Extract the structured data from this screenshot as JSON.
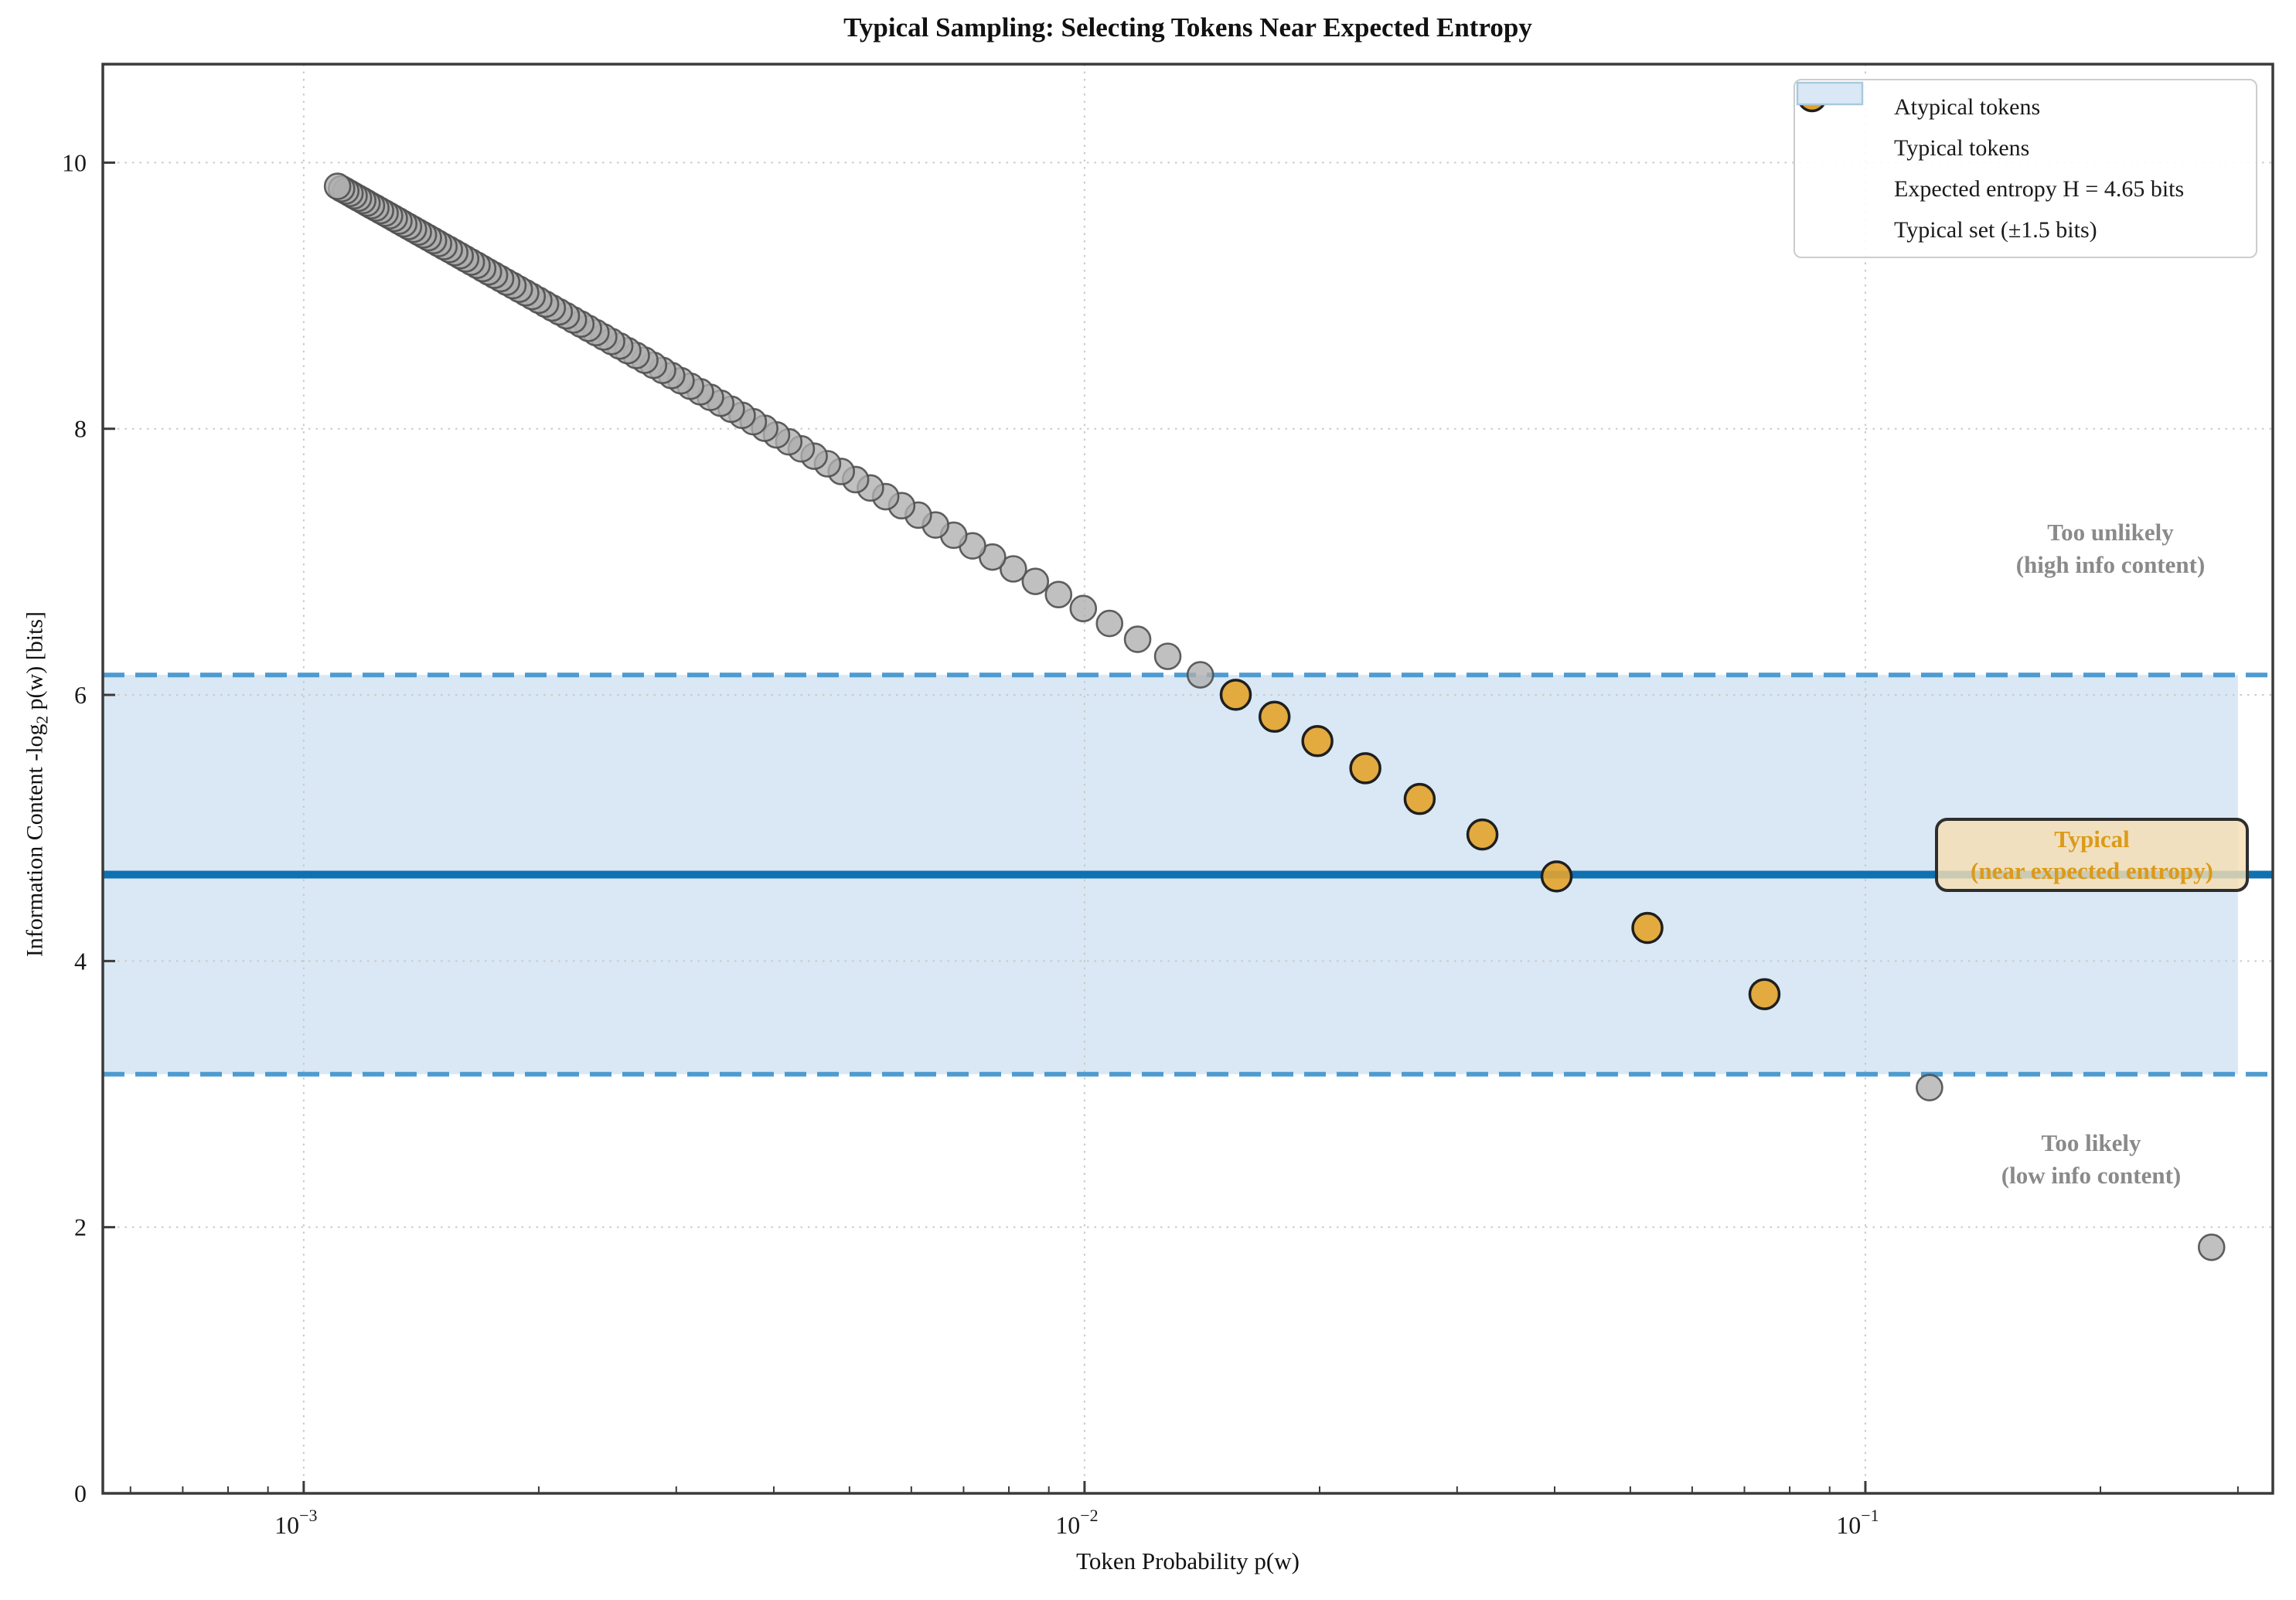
{
  "chart_data": {
    "type": "scatter",
    "title": "Typical Sampling: Selecting Tokens Near Expected Entropy",
    "xlabel": "Token Probability p(w)",
    "ylabel": "Information Content -log2 p(w) [bits]",
    "ylabel_parts": {
      "prefix": "Information Content -log",
      "sub": "2",
      "suffix": " p(w) [bits]"
    },
    "xscale": "log",
    "xlim": [
      0.000553,
      0.3325
    ],
    "ylim": [
      0,
      10.74
    ],
    "yticks": [
      0,
      2,
      4,
      6,
      8,
      10
    ],
    "xticks": [
      {
        "value": 0.001,
        "base": "10",
        "exp": "−3"
      },
      {
        "value": 0.01,
        "base": "10",
        "exp": "−2"
      },
      {
        "value": 0.1,
        "base": "10",
        "exp": "−1"
      }
    ],
    "grid": "dotted, major ticks only",
    "legend_position": "upper right",
    "expected_entropy_bits": 4.65,
    "typical_halfwidth_bits": 1.5,
    "typical_band": {
      "lo": 3.15,
      "hi": 6.15,
      "fill_x_end": 0.3
    },
    "colors": {
      "band_fill": "#d9e8f4",
      "band_edge": "#4e9bd0",
      "entropy_line": "#0f70b2",
      "atypical_fill": "#aeaeae",
      "atypical_edge": "#4f4f4f",
      "typical_fill": "#e2a32b",
      "typical_edge": "#1f1f1f",
      "grid": "#c9c9c9",
      "spine": "#3a3a3a",
      "tick_label": "#1a1a1a",
      "annotation_gray": "#8a8a8a",
      "annotation_orange": "#dc9a18",
      "typical_box_fill": "rgba(245,222,179,0.82)",
      "typical_box_edge": "#2e2e2e"
    },
    "series": [
      {
        "name": "Atypical tokens",
        "marker": "circle",
        "points": [
          [
            0.277548,
            1.849
          ],
          [
            0.12081,
            3.049
          ],
          [
            0.014071,
            6.151
          ],
          [
            0.012781,
            6.29
          ],
          [
            0.011694,
            6.418
          ],
          [
            0.010765,
            6.537
          ],
          [
            0.009963,
            6.649
          ],
          [
            0.009262,
            6.754
          ],
          [
            0.00865,
            6.853
          ],
          [
            0.008106,
            6.947
          ],
          [
            0.007623,
            7.036
          ],
          [
            0.007187,
            7.12
          ],
          [
            0.006799,
            7.2
          ],
          [
            0.006444,
            7.277
          ],
          [
            0.006125,
            7.351
          ],
          [
            0.005832,
            7.422
          ],
          [
            0.005563,
            7.49
          ],
          [
            0.005318,
            7.555
          ],
          [
            0.00509,
            7.618
          ],
          [
            0.00488,
            7.679
          ],
          [
            0.004686,
            7.737
          ],
          [
            0.004505,
            7.794
          ],
          [
            0.004337,
            7.849
          ],
          [
            0.00418,
            7.902
          ],
          [
            0.004032,
            7.954
          ],
          [
            0.003894,
            8.004
          ],
          [
            0.003765,
            8.053
          ],
          [
            0.003643,
            8.101
          ],
          [
            0.003528,
            8.147
          ],
          [
            0.00342,
            8.192
          ],
          [
            0.003318,
            8.236
          ],
          [
            0.003221,
            8.278
          ],
          [
            0.003128,
            8.32
          ],
          [
            0.003042,
            8.361
          ],
          [
            0.002959,
            8.4
          ],
          [
            0.002881,
            8.439
          ],
          [
            0.002805,
            8.477
          ],
          [
            0.002734,
            8.515
          ],
          [
            0.002666,
            8.551
          ],
          [
            0.0026,
            8.587
          ],
          [
            0.002539,
            8.622
          ],
          [
            0.002479,
            8.656
          ],
          [
            0.002422,
            8.69
          ],
          [
            0.002367,
            8.723
          ],
          [
            0.002315,
            8.755
          ],
          [
            0.002264,
            8.787
          ],
          [
            0.002215,
            8.818
          ],
          [
            0.002169,
            8.849
          ],
          [
            0.002124,
            8.879
          ],
          [
            0.002081,
            8.908
          ],
          [
            0.00204,
            8.937
          ],
          [
            0.002,
            8.966
          ],
          [
            0.001961,
            8.994
          ],
          [
            0.001924,
            9.022
          ],
          [
            0.001888,
            9.049
          ],
          [
            0.001853,
            9.076
          ],
          [
            0.001819,
            9.102
          ],
          [
            0.001787,
            9.128
          ],
          [
            0.001755,
            9.154
          ],
          [
            0.001724,
            9.179
          ],
          [
            0.001695,
            9.204
          ],
          [
            0.001667,
            9.229
          ],
          [
            0.001639,
            9.253
          ],
          [
            0.001612,
            9.277
          ],
          [
            0.001586,
            9.301
          ],
          [
            0.001561,
            9.324
          ],
          [
            0.001536,
            9.347
          ],
          [
            0.001512,
            9.369
          ],
          [
            0.001488,
            9.392
          ],
          [
            0.001466,
            9.414
          ],
          [
            0.001444,
            9.436
          ],
          [
            0.001423,
            9.457
          ],
          [
            0.001402,
            9.478
          ],
          [
            0.001382,
            9.499
          ],
          [
            0.001362,
            9.52
          ],
          [
            0.001343,
            9.54
          ],
          [
            0.001324,
            9.561
          ],
          [
            0.001306,
            9.581
          ],
          [
            0.001288,
            9.601
          ],
          [
            0.001271,
            9.62
          ],
          [
            0.001254,
            9.639
          ],
          [
            0.001237,
            9.659
          ],
          [
            0.001221,
            9.677
          ],
          [
            0.001205,
            9.696
          ],
          [
            0.00119,
            9.715
          ],
          [
            0.001175,
            9.733
          ],
          [
            0.00116,
            9.751
          ],
          [
            0.001146,
            9.769
          ],
          [
            0.001132,
            9.787
          ],
          [
            0.001118,
            9.804
          ],
          [
            0.001105,
            9.822
          ]
        ]
      },
      {
        "name": "Typical tokens",
        "marker": "circle",
        "points": [
          [
            0.074266,
            3.751
          ],
          [
            0.052585,
            4.249
          ],
          [
            0.040232,
            4.636
          ],
          [
            0.032326,
            4.951
          ],
          [
            0.026865,
            5.218
          ],
          [
            0.022889,
            5.449
          ],
          [
            0.019872,
            5.653
          ],
          [
            0.017512,
            5.836
          ],
          [
            0.015619,
            6.001
          ]
        ]
      }
    ],
    "legend": {
      "entries": [
        {
          "label": "Atypical tokens",
          "swatch": "circle"
        },
        {
          "label": "Typical tokens",
          "swatch": "circle"
        },
        {
          "label": "Expected entropy H = 4.65 bits",
          "swatch": "line"
        },
        {
          "label": "Typical set (±1.5 bits)",
          "swatch": "patch"
        }
      ]
    },
    "annotations": [
      {
        "lines": [
          "Too unlikely",
          "(high info content)"
        ],
        "x": 0.2,
        "y": 7.1,
        "color": "#8a8a8a"
      },
      {
        "lines": [
          "Too likely",
          "(low info content)"
        ],
        "x": 0.195,
        "y": 2.55,
        "color": "#8a8a8a"
      },
      {
        "lines": [
          "Typical",
          "(near expected entropy)"
        ],
        "x": 0.194,
        "y": 4.8,
        "color": "#dc9a18",
        "boxed": true
      }
    ]
  }
}
